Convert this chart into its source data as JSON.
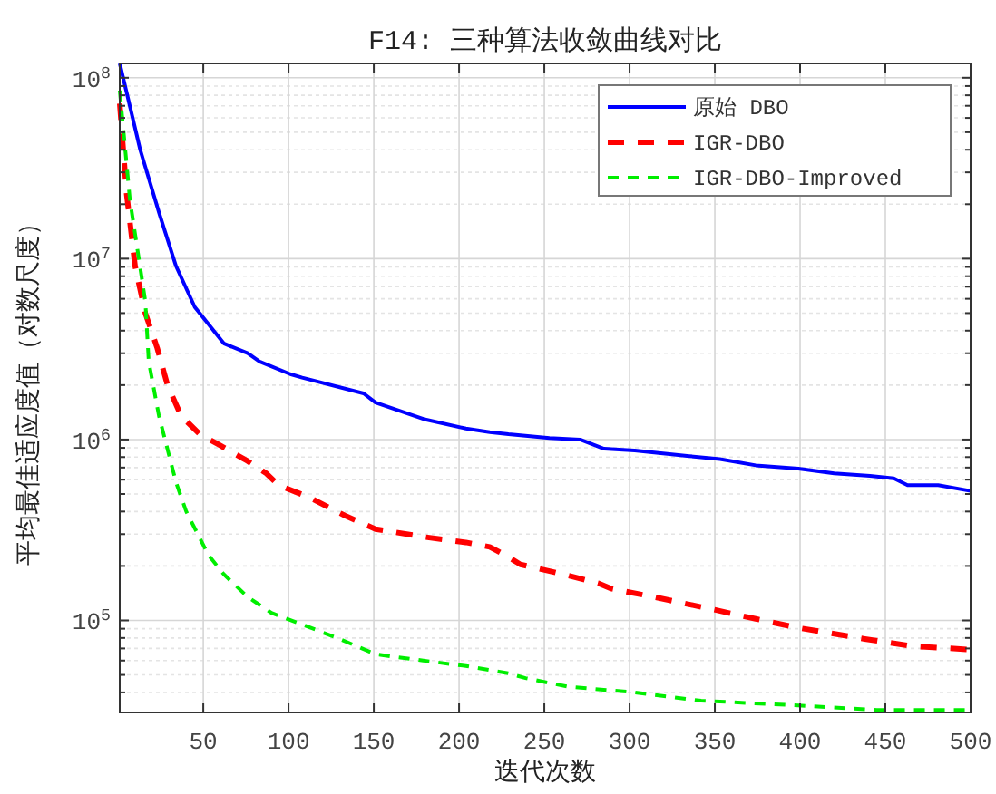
{
  "chart_data": {
    "type": "line",
    "title": "F14: 三种算法收敛曲线对比",
    "xlabel": "迭代次数",
    "ylabel": "平均最佳适应度值（对数尺度）",
    "log": "y",
    "grid": true,
    "legend": "top right",
    "marker": "none",
    "xlim": [
      1,
      500
    ],
    "xticks": [
      50,
      100,
      150,
      200,
      250,
      300,
      350,
      400,
      450,
      500
    ],
    "ylim": [
      31000,
      120000000
    ],
    "yticks": [
      {
        "value": 40000,
        "label": null
      },
      {
        "value": 50000,
        "label": null
      },
      {
        "value": 60000,
        "label": null
      },
      {
        "value": 70000,
        "label": null
      },
      {
        "value": 80000,
        "label": null
      },
      {
        "value": 90000,
        "label": null
      },
      {
        "value": 100000,
        "label": "10$^{5}$"
      },
      {
        "value": 200000,
        "label": null
      },
      {
        "value": 300000,
        "label": null
      },
      {
        "value": 400000,
        "label": null
      },
      {
        "value": 500000,
        "label": null
      },
      {
        "value": 600000,
        "label": null
      },
      {
        "value": 700000,
        "label": null
      },
      {
        "value": 800000,
        "label": null
      },
      {
        "value": 900000,
        "label": null
      },
      {
        "value": 1000000,
        "label": "10$^{6}$"
      },
      {
        "value": 2000000,
        "label": null
      },
      {
        "value": 3000000,
        "label": null
      },
      {
        "value": 4000000,
        "label": null
      },
      {
        "value": 5000000,
        "label": null
      },
      {
        "value": 6000000,
        "label": null
      },
      {
        "value": 7000000,
        "label": null
      },
      {
        "value": 8000000,
        "label": null
      },
      {
        "value": 9000000,
        "label": null
      },
      {
        "value": 10000000,
        "label": "10$^{7}$"
      },
      {
        "value": 20000000,
        "label": null
      },
      {
        "value": 30000000,
        "label": null
      },
      {
        "value": 40000000,
        "label": null
      },
      {
        "value": 50000000,
        "label": null
      },
      {
        "value": 60000000,
        "label": null
      },
      {
        "value": 70000000,
        "label": null
      },
      {
        "value": 80000000,
        "label": null
      },
      {
        "value": 90000000,
        "label": null
      },
      {
        "value": 100000000,
        "label": "10$^{8}$"
      }
    ],
    "series": [
      {
        "name": "原始 DBO",
        "color": "#0000ff",
        "line_style": "solid",
        "x": [
          1,
          13,
          24,
          34,
          45,
          62,
          76,
          83,
          101,
          108,
          144,
          151,
          179,
          204,
          218,
          229,
          253,
          271,
          285,
          303,
          335,
          353,
          374,
          399,
          420,
          441,
          455,
          463,
          481,
          500
        ],
        "values": [
          120000000,
          40000000,
          18000000,
          9100000,
          5400000,
          3400000,
          3000000,
          2700000,
          2300000,
          2200000,
          1800000,
          1600000,
          1300000,
          1150000,
          1100000,
          1070000,
          1020000,
          1000000,
          890000,
          870000,
          810000,
          780000,
          720000,
          690000,
          650000,
          630000,
          610000,
          560000,
          560000,
          520000
        ]
      },
      {
        "name": "IGR-DBO",
        "color": "#ff0000",
        "line_style": "dashed",
        "x": [
          1,
          5,
          10,
          16,
          23,
          29,
          37,
          48,
          58,
          76,
          87,
          94,
          112,
          133,
          151,
          179,
          204,
          218,
          227,
          236,
          261,
          282,
          289,
          314,
          349,
          374,
          399,
          438,
          466,
          500
        ],
        "values": [
          72000000,
          23000000,
          9100000,
          5000000,
          3200000,
          2000000,
          1350000,
          1070000,
          950000,
          760000,
          650000,
          560000,
          480000,
          380000,
          320000,
          290000,
          270000,
          255000,
          230000,
          204000,
          180000,
          160000,
          150000,
          135000,
          115000,
          102000,
          91000,
          79000,
          72000,
          69000
        ]
      },
      {
        "name": "IGR-DBO-Improved",
        "color": "#00ee00",
        "line_style": "dashed",
        "x": [
          1,
          7,
          16,
          18,
          24,
          34,
          40,
          53,
          62,
          76,
          90,
          108,
          130,
          151,
          179,
          204,
          229,
          239,
          264,
          303,
          342,
          396,
          445,
          500
        ],
        "values": [
          85000000,
          21000000,
          5800000,
          2700000,
          1350000,
          580000,
          400000,
          230000,
          180000,
          135000,
          110000,
          95000,
          79000,
          65000,
          60000,
          56000,
          51000,
          48000,
          43000,
          40000,
          36000,
          34000,
          32000,
          32000
        ]
      }
    ]
  }
}
